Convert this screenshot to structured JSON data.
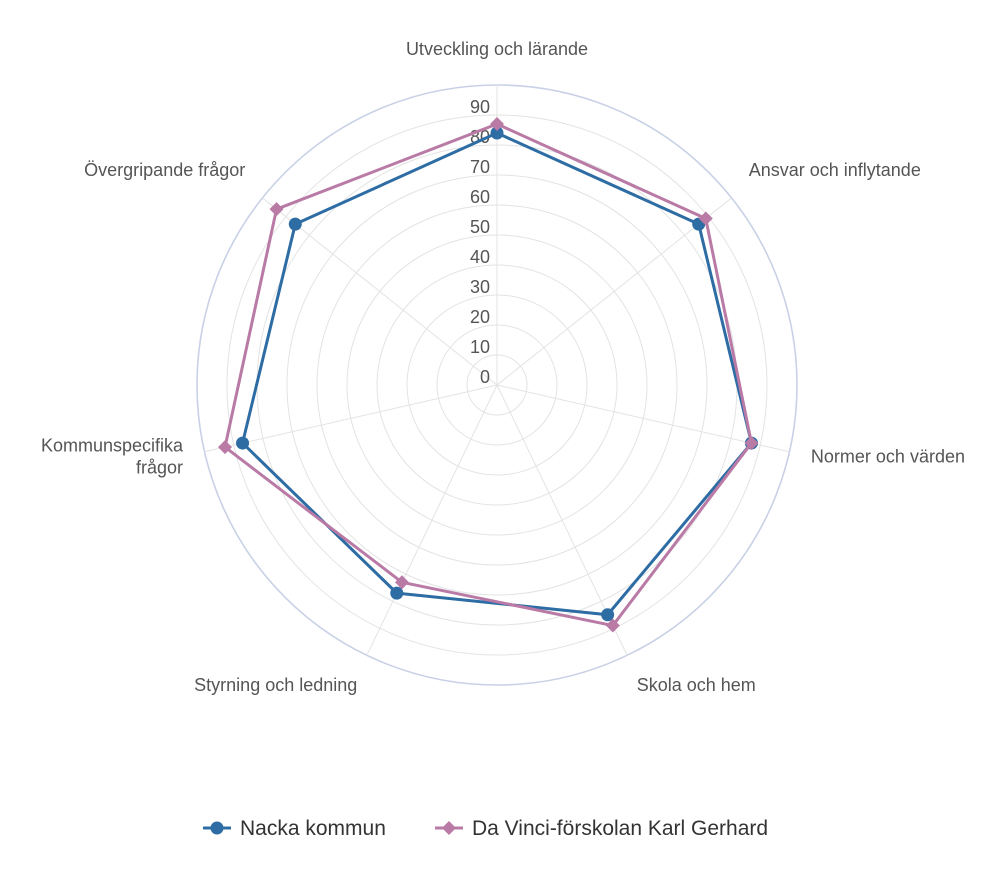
{
  "chart_data": {
    "type": "radar",
    "categories": [
      "Utveckling och lärande",
      "Ansvar och inflytande",
      "Normer och värden",
      "Skola och hem",
      "Styrning och ledning",
      "Kommunspecifika frågor",
      "Övergripande frågor"
    ],
    "category_lines": [
      [
        "Utveckling och lärande"
      ],
      [
        "Ansvar och inflytande"
      ],
      [
        "Normer och värden"
      ],
      [
        "Skola och hem"
      ],
      [
        "Styrning och ledning"
      ],
      [
        "Kommunspecifika",
        "frågor"
      ],
      [
        "Övergripande frågor"
      ]
    ],
    "r_ticks": [
      "0",
      "10",
      "20",
      "30",
      "40",
      "50",
      "60",
      "70",
      "80",
      "90"
    ],
    "r_range": [
      0,
      100
    ],
    "grid": true,
    "legend_position": "bottom",
    "series": [
      {
        "name": "Nacka kommun",
        "color": "#2e6ca4",
        "marker": "circle",
        "values": [
          84,
          86,
          87,
          85,
          77,
          87,
          86
        ]
      },
      {
        "name": "Da Vinci-förskolan Karl Gerhard",
        "color": "#b97aa6",
        "marker": "diamond",
        "values": [
          87,
          89,
          87,
          89,
          73,
          93,
          94
        ]
      }
    ]
  }
}
